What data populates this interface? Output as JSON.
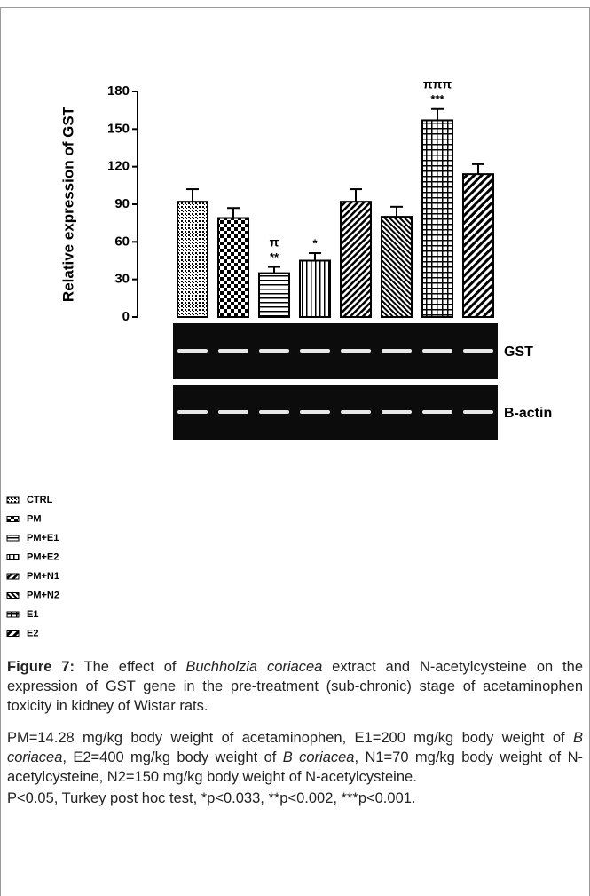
{
  "chart_data": {
    "type": "bar",
    "y_label": "Relative expression of GST",
    "categories": [
      "CTRL",
      "PM",
      "PM+E1",
      "PM+E2",
      "PM+N1",
      "PM+N2",
      "E1",
      "E2"
    ],
    "values": [
      92,
      79,
      35,
      45,
      92,
      80,
      157,
      114
    ],
    "errors": [
      10,
      8,
      5,
      6,
      10,
      8,
      9,
      8
    ],
    "significance": [
      null,
      null,
      "**",
      "*",
      null,
      null,
      "***",
      null
    ],
    "significance_vs_pm": [
      null,
      null,
      "π",
      null,
      null,
      null,
      "πππ",
      null
    ],
    "ylim": [
      0,
      180
    ],
    "yticks": [
      0,
      30,
      60,
      90,
      120,
      150,
      180
    ],
    "color": "#000000",
    "gel_labels": [
      "GST",
      "B-actin"
    ]
  },
  "caption": {
    "label": "Figure 7:",
    "runs": [
      {
        "text": " The effect of "
      },
      {
        "text": "Buchholzia coriacea",
        "style": "italic"
      },
      {
        "text": " extract and N-acetylcysteine on the expression of GST gene in the pre-treatment (sub-chronic) stage of acetaminophen toxicity in kidney of Wistar rats."
      }
    ]
  },
  "notes": {
    "runs": [
      {
        "text": "PM=14.28 mg/kg body weight of acetaminophen, E1=200 mg/kg body weight of "
      },
      {
        "text": "B coriacea",
        "style": "italic"
      },
      {
        "text": ", E2=400 mg/kg body weight of "
      },
      {
        "text": "B coriacea",
        "style": "italic"
      },
      {
        "text": ", N1=70 mg/kg body weight of N-acetylcysteine, N2=150 mg/kg body weight of N-acetylcysteine."
      }
    ],
    "stats": "P<0.05, Turkey post hoc test, *p<0.033, **p<0.002, ***p<0.001."
  }
}
